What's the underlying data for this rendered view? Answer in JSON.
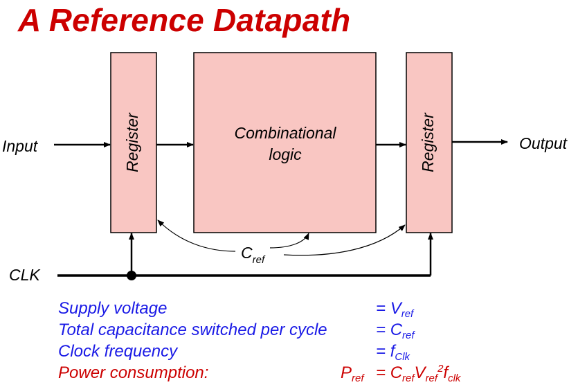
{
  "title": "A Reference Datapath",
  "diagram": {
    "input_label": "Input",
    "output_label": "Output",
    "clk_label": "CLK",
    "register_left": "Register",
    "register_right": "Register",
    "comb_line1": "Combinational",
    "comb_line2": "logic",
    "cref_main": "C",
    "cref_sub": "ref"
  },
  "rows": [
    {
      "label": "Supply voltage",
      "value_sym": "V",
      "value_sub": "ref"
    },
    {
      "label": "Total capacitance switched per cycle",
      "value_sym": "C",
      "value_sub": "ref"
    },
    {
      "label": "Clock frequency",
      "value_sym": "f",
      "value_sub": "Clk"
    }
  ],
  "power": {
    "label": "Power consumption:",
    "lhs_sym": "P",
    "lhs_sub": "ref",
    "eq": "=",
    "c_sym": "C",
    "c_sub": "ref",
    "v_sym": "V",
    "v_sub": "ref",
    "v_exp": "2",
    "f_sym": "f",
    "f_sub": "clk"
  },
  "colors": {
    "title": "#cc0000",
    "block_fill": "#f9c6c2",
    "text_blue": "#1a1ae6",
    "text_red": "#cc0000"
  }
}
